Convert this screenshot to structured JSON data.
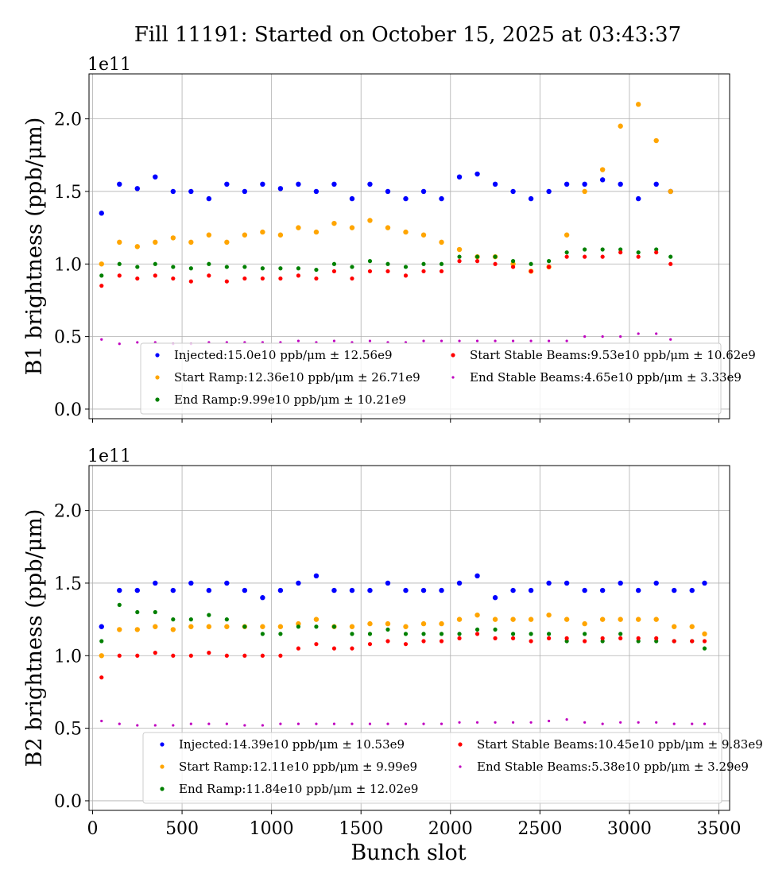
{
  "chart_data": [
    {
      "type": "scatter",
      "title": "Fill 11191: Started on October 15, 2025 at 03:43:37",
      "xlabel": "",
      "ylabel": "B1 brightness (ppb/μm)",
      "y_offset_label": "1e11",
      "xlim": [
        -20,
        3560
      ],
      "ylim": [
        -0.066,
        2.31
      ],
      "xticks": [
        "0",
        "500",
        "1000",
        "1500",
        "2000",
        "2500",
        "3000",
        "3500"
      ],
      "xtick_values": [
        0,
        500,
        1000,
        1500,
        2000,
        2500,
        3000,
        3500
      ],
      "show_xtick_labels": false,
      "yticks": [
        "0.0",
        "0.5",
        "1.0",
        "1.5",
        "2.0"
      ],
      "ytick_values": [
        0,
        0.5,
        1.0,
        1.5,
        2.0
      ],
      "grid": true,
      "legend_placement": "lower-right",
      "x": [
        50,
        150,
        250,
        350,
        450,
        550,
        650,
        750,
        850,
        950,
        1050,
        1150,
        1250,
        1350,
        1450,
        1550,
        1650,
        1750,
        1850,
        1950,
        2050,
        2150,
        2250,
        2350,
        2450,
        2550,
        2650,
        2750,
        2850,
        2950,
        3050,
        3150,
        3230
      ],
      "series": [
        {
          "name": "Injected",
          "legend": "Injected:15.0e10 ppb/μm ± 12.56e9",
          "color": "#0000ff",
          "marker_size": 3.2,
          "values": [
            1.35,
            1.55,
            1.52,
            1.6,
            1.5,
            1.5,
            1.45,
            1.55,
            1.5,
            1.55,
            1.52,
            1.55,
            1.5,
            1.55,
            1.45,
            1.55,
            1.5,
            1.45,
            1.5,
            1.45,
            1.6,
            1.62,
            1.55,
            1.5,
            1.45,
            1.5,
            1.55,
            1.55,
            1.58,
            1.55,
            1.45,
            1.55,
            1.5
          ]
        },
        {
          "name": "Start Ramp",
          "legend": "Start Ramp:12.36e10 ppb/μm ± 26.71e9",
          "color": "#ffa500",
          "marker_size": 3.2,
          "values": [
            1.0,
            1.15,
            1.12,
            1.15,
            1.18,
            1.15,
            1.2,
            1.15,
            1.2,
            1.22,
            1.2,
            1.25,
            1.22,
            1.28,
            1.25,
            1.3,
            1.25,
            1.22,
            1.2,
            1.15,
            1.1,
            1.05,
            1.05,
            1.0,
            0.95,
            0.98,
            1.2,
            1.5,
            1.65,
            1.95,
            2.1,
            1.85,
            1.5
          ]
        },
        {
          "name": "End Ramp",
          "legend": "End Ramp:9.99e10 ppb/μm ± 10.21e9",
          "color": "#008000",
          "marker_size": 2.6,
          "values": [
            0.92,
            1.0,
            0.98,
            1.0,
            0.98,
            0.97,
            1.0,
            0.98,
            0.98,
            0.97,
            0.97,
            0.97,
            0.96,
            1.0,
            0.98,
            1.02,
            1.0,
            0.98,
            1.0,
            1.0,
            1.05,
            1.05,
            1.05,
            1.02,
            1.0,
            1.02,
            1.08,
            1.1,
            1.1,
            1.1,
            1.08,
            1.1,
            1.05
          ]
        },
        {
          "name": "Start Stable Beams",
          "legend": "Start Stable Beams:9.53e10 ppb/μm ± 10.62e9",
          "color": "#ff0000",
          "marker_size": 2.6,
          "values": [
            0.85,
            0.92,
            0.9,
            0.92,
            0.9,
            0.88,
            0.92,
            0.88,
            0.9,
            0.9,
            0.9,
            0.92,
            0.9,
            0.95,
            0.9,
            0.95,
            0.95,
            0.92,
            0.95,
            0.95,
            1.02,
            1.02,
            1.0,
            0.98,
            0.95,
            0.98,
            1.05,
            1.05,
            1.05,
            1.08,
            1.05,
            1.08,
            1.0
          ]
        },
        {
          "name": "End Stable Beams",
          "legend": "End Stable Beams:4.65e10 ppb/μm ± 3.33e9",
          "color": "#bf00bf",
          "marker_size": 1.6,
          "values": [
            0.48,
            0.45,
            0.46,
            0.46,
            0.45,
            0.45,
            0.46,
            0.46,
            0.46,
            0.46,
            0.46,
            0.47,
            0.46,
            0.47,
            0.46,
            0.47,
            0.46,
            0.46,
            0.47,
            0.47,
            0.47,
            0.47,
            0.47,
            0.47,
            0.47,
            0.47,
            0.47,
            0.5,
            0.5,
            0.5,
            0.52,
            0.52,
            0.48
          ]
        }
      ]
    },
    {
      "type": "scatter",
      "title": "",
      "xlabel": "Bunch slot",
      "ylabel": "B2 brightness (ppb/μm)",
      "y_offset_label": "1e11",
      "xlim": [
        -20,
        3560
      ],
      "ylim": [
        -0.066,
        2.31
      ],
      "xticks": [
        "0",
        "500",
        "1000",
        "1500",
        "2000",
        "2500",
        "3000",
        "3500"
      ],
      "xtick_values": [
        0,
        500,
        1000,
        1500,
        2000,
        2500,
        3000,
        3500
      ],
      "show_xtick_labels": true,
      "yticks": [
        "0.0",
        "0.5",
        "1.0",
        "1.5",
        "2.0"
      ],
      "ytick_values": [
        0,
        0.5,
        1.0,
        1.5,
        2.0
      ],
      "grid": true,
      "legend_placement": "lower-right",
      "x": [
        50,
        150,
        250,
        350,
        450,
        550,
        650,
        750,
        850,
        950,
        1050,
        1150,
        1250,
        1350,
        1450,
        1550,
        1650,
        1750,
        1850,
        1950,
        2050,
        2150,
        2250,
        2350,
        2450,
        2550,
        2650,
        2750,
        2850,
        2950,
        3050,
        3150,
        3250,
        3350,
        3420
      ],
      "series": [
        {
          "name": "Injected",
          "legend": "Injected:14.39e10 ppb/μm ± 10.53e9",
          "color": "#0000ff",
          "marker_size": 3.2,
          "values": [
            1.2,
            1.45,
            1.45,
            1.5,
            1.45,
            1.5,
            1.45,
            1.5,
            1.45,
            1.4,
            1.45,
            1.5,
            1.55,
            1.45,
            1.45,
            1.45,
            1.5,
            1.45,
            1.45,
            1.45,
            1.5,
            1.55,
            1.4,
            1.45,
            1.45,
            1.5,
            1.5,
            1.45,
            1.45,
            1.5,
            1.45,
            1.5,
            1.45,
            1.45,
            1.5
          ]
        },
        {
          "name": "Start Ramp",
          "legend": "Start Ramp:12.11e10 ppb/μm ± 9.99e9",
          "color": "#ffa500",
          "marker_size": 3.2,
          "values": [
            1.0,
            1.18,
            1.18,
            1.2,
            1.18,
            1.2,
            1.2,
            1.2,
            1.2,
            1.2,
            1.2,
            1.22,
            1.25,
            1.2,
            1.2,
            1.22,
            1.22,
            1.2,
            1.22,
            1.22,
            1.25,
            1.28,
            1.25,
            1.25,
            1.25,
            1.28,
            1.25,
            1.22,
            1.25,
            1.25,
            1.25,
            1.25,
            1.2,
            1.2,
            1.15
          ]
        },
        {
          "name": "End Ramp",
          "legend": "End Ramp:11.84e10 ppb/μm ± 12.02e9",
          "color": "#008000",
          "marker_size": 2.6,
          "values": [
            1.1,
            1.35,
            1.3,
            1.3,
            1.25,
            1.25,
            1.28,
            1.25,
            1.2,
            1.15,
            1.15,
            1.2,
            1.2,
            1.2,
            1.15,
            1.15,
            1.18,
            1.15,
            1.15,
            1.15,
            1.15,
            1.18,
            1.18,
            1.15,
            1.15,
            1.15,
            1.1,
            1.15,
            1.1,
            1.15,
            1.1,
            1.1,
            1.1,
            1.1,
            1.05
          ]
        },
        {
          "name": "Start Stable Beams",
          "legend": "Start Stable Beams:10.45e10 ppb/μm ± 9.83e9",
          "color": "#ff0000",
          "marker_size": 2.6,
          "values": [
            0.85,
            1.0,
            1.0,
            1.02,
            1.0,
            1.0,
            1.02,
            1.0,
            1.0,
            1.0,
            1.0,
            1.05,
            1.08,
            1.05,
            1.05,
            1.08,
            1.1,
            1.08,
            1.1,
            1.1,
            1.12,
            1.15,
            1.12,
            1.12,
            1.1,
            1.12,
            1.12,
            1.1,
            1.12,
            1.12,
            1.12,
            1.12,
            1.1,
            1.1,
            1.1
          ]
        },
        {
          "name": "End Stable Beams",
          "legend": "End Stable Beams:5.38e10 ppb/μm ± 3.29e9",
          "color": "#bf00bf",
          "marker_size": 1.6,
          "values": [
            0.55,
            0.53,
            0.52,
            0.52,
            0.52,
            0.53,
            0.53,
            0.53,
            0.52,
            0.52,
            0.53,
            0.53,
            0.53,
            0.53,
            0.53,
            0.53,
            0.53,
            0.53,
            0.53,
            0.53,
            0.54,
            0.54,
            0.54,
            0.54,
            0.54,
            0.55,
            0.56,
            0.54,
            0.53,
            0.54,
            0.54,
            0.54,
            0.53,
            0.53,
            0.53
          ]
        }
      ]
    }
  ]
}
